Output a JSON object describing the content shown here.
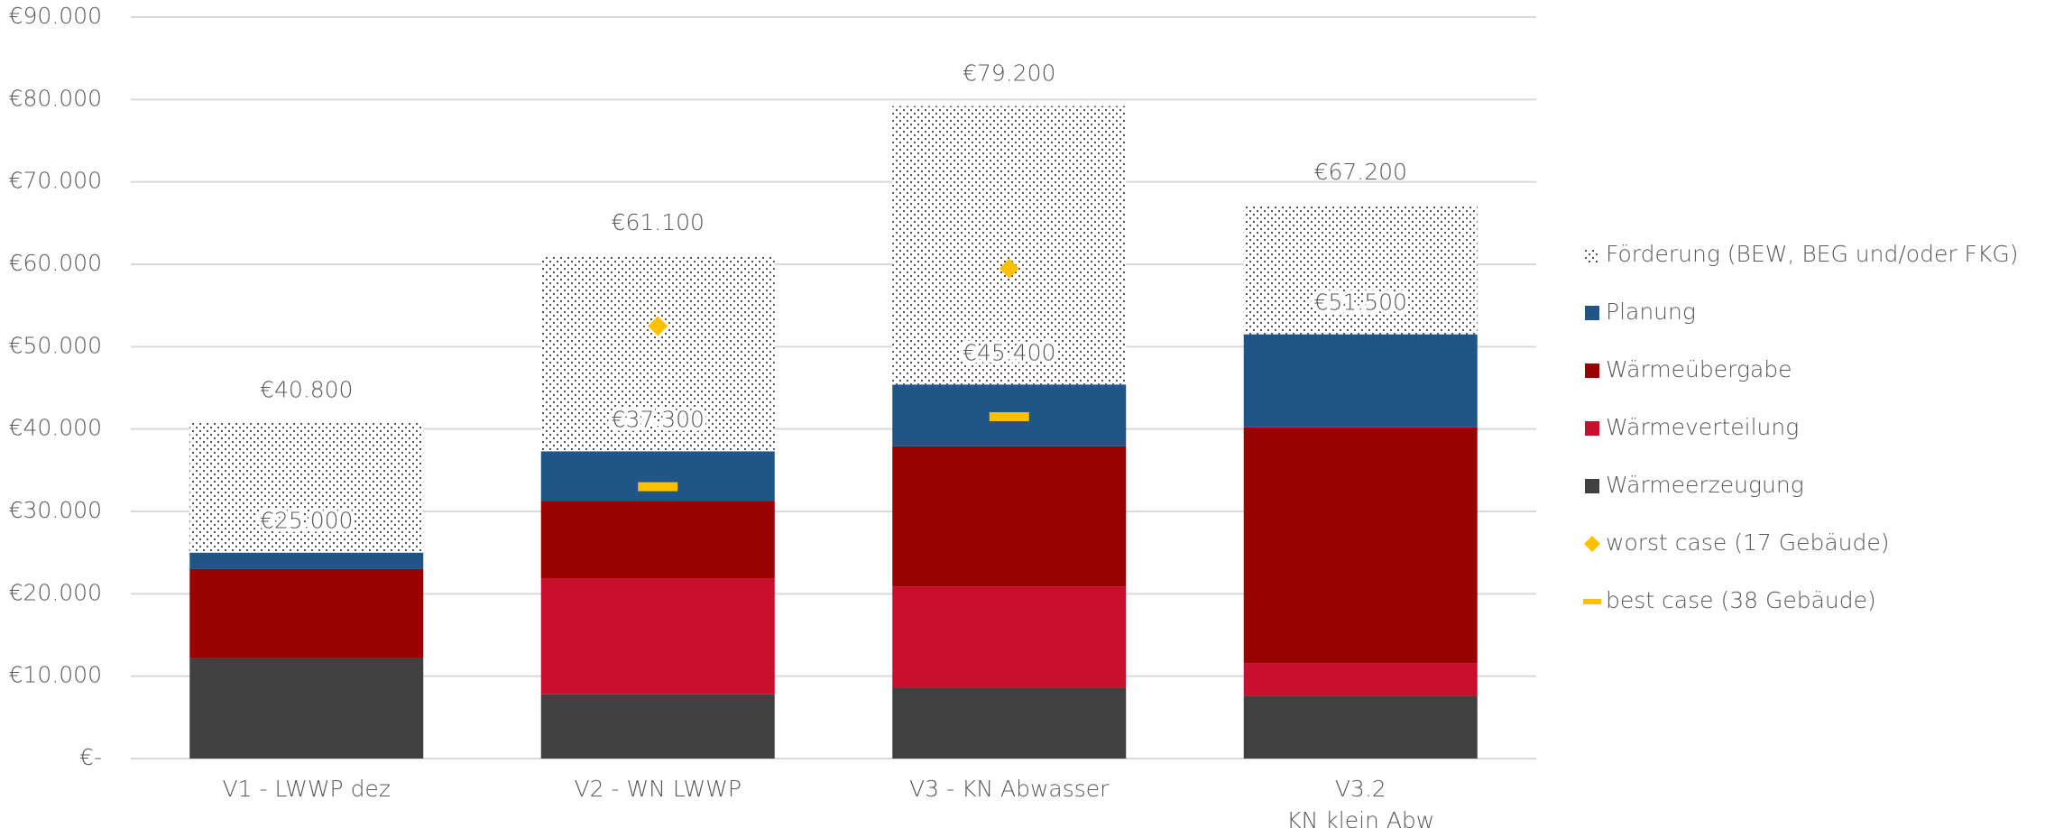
{
  "chart_data": {
    "type": "stacked_bar",
    "categories": [
      "V1 - LWWP dez",
      "V2 - WN LWWP",
      "V3 - KN Abwasser",
      "V3.2\nKN klein Abw"
    ],
    "series": [
      {
        "name": "Wärmeerzeugung",
        "color": "#404040",
        "kind": "bar",
        "values": [
          12200,
          7800,
          8600,
          7600
        ]
      },
      {
        "name": "Wärmeverteilung",
        "color": "#c8102e",
        "kind": "bar",
        "values": [
          0,
          14100,
          12300,
          4000
        ]
      },
      {
        "name": "Wärmeübergabe",
        "color": "#990000",
        "kind": "bar",
        "values": [
          10800,
          9400,
          17000,
          28600
        ]
      },
      {
        "name": "Planung",
        "color": "#1f5587",
        "kind": "bar",
        "values": [
          2000,
          6000,
          7500,
          11300
        ]
      },
      {
        "name": "Förderung (BEW, BEG und/oder FKG)",
        "color": "#404040",
        "kind": "bar",
        "pattern": "dots",
        "values": [
          15800,
          23800,
          33800,
          15700
        ]
      },
      {
        "name": "worst case (17 Gebäude)",
        "color": "#ffc000",
        "kind": "diamond",
        "values": [
          null,
          52500,
          59500,
          null
        ]
      },
      {
        "name": "best case (38 Gebäude)",
        "color": "#ffc000",
        "kind": "dash",
        "values": [
          null,
          33000,
          41500,
          null
        ]
      }
    ],
    "subtotals": {
      "values": [
        25000,
        37300,
        45400,
        51500
      ],
      "value_labels": [
        "€25.000",
        "€37.300",
        "€45.400",
        "€51.500"
      ]
    },
    "totals": {
      "values": [
        40800,
        61100,
        79200,
        67200
      ],
      "value_labels": [
        "€40.800",
        "€61.100",
        "€79.200",
        "€67.200"
      ]
    },
    "ylim": [
      0,
      90000
    ],
    "yticks": [
      {
        "value": 0,
        "label": "€-"
      },
      {
        "value": 10000,
        "label": "€10.000"
      },
      {
        "value": 20000,
        "label": "€20.000"
      },
      {
        "value": 30000,
        "label": "€30.000"
      },
      {
        "value": 40000,
        "label": "€40.000"
      },
      {
        "value": 50000,
        "label": "€50.000"
      },
      {
        "value": 60000,
        "label": "€60.000"
      },
      {
        "value": 70000,
        "label": "€70.000"
      },
      {
        "value": 80000,
        "label": "€80.000"
      },
      {
        "value": 90000,
        "label": "€90.000"
      }
    ],
    "grid": true,
    "legend": "right"
  }
}
